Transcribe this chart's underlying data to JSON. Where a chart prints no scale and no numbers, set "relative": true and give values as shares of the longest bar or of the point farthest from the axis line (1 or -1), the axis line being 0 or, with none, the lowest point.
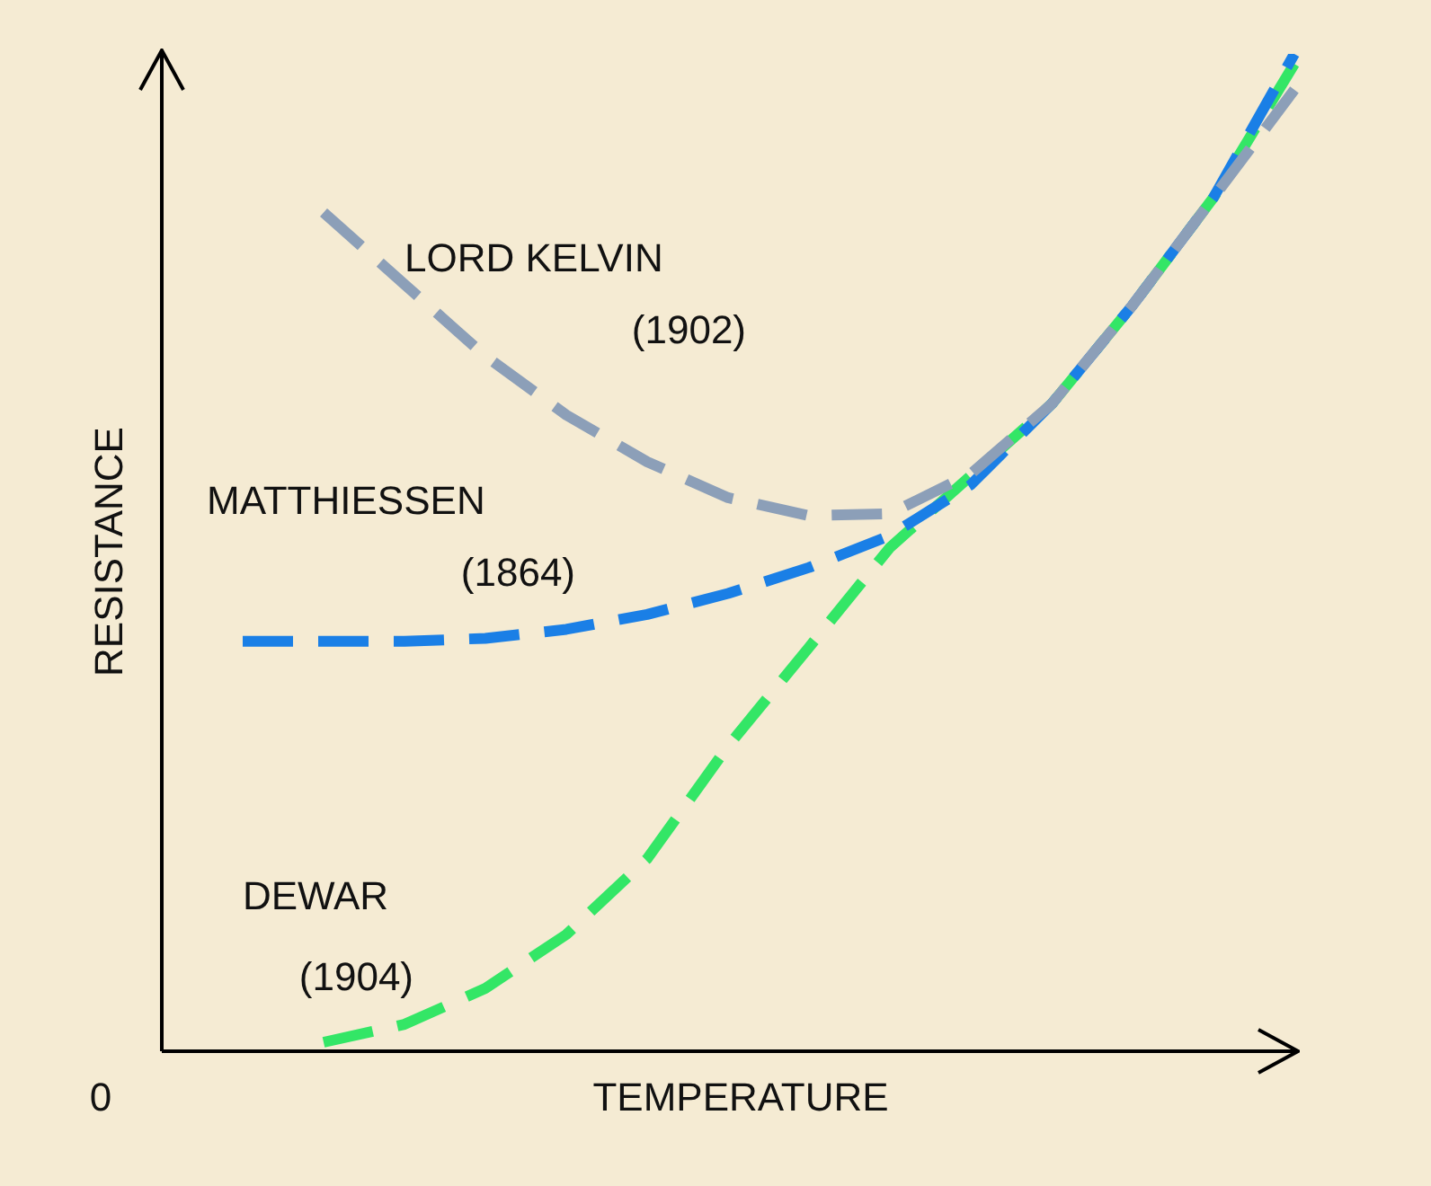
{
  "chart_data": {
    "type": "line",
    "relative": true,
    "xlabel": "TEMPERATURE",
    "ylabel": "RESISTANCE",
    "annotations": [
      "0"
    ],
    "categories": [
      null,
      null,
      null,
      null,
      null,
      null,
      null,
      null,
      null,
      null,
      null,
      null,
      null,
      null,
      null
    ],
    "series": [
      {
        "name": "LORD KELVIN (1902)",
        "color": "#8c9fb8",
        "values": [
          null,
          null,
          0.841,
          0.769,
          0.697,
          0.638,
          0.591,
          0.555,
          0.537,
          0.539,
          0.579,
          0.649,
          0.748,
          0.856,
          0.964
        ]
      },
      {
        "name": "MATTHIESSEN (1864)",
        "color": "#1a7fe6",
        "values": [
          null,
          0.411,
          0.411,
          0.411,
          0.414,
          0.423,
          0.438,
          0.459,
          0.485,
          0.517,
          0.568,
          0.649,
          0.748,
          0.856,
          1
        ]
      },
      {
        "name": "DEWAR (1904)",
        "color": "#33e666",
        "values": [
          null,
          null,
          0.009,
          0.027,
          0.063,
          0.117,
          0.193,
          0.306,
          0.405,
          0.505,
          0.577,
          0.649,
          0.748,
          0.856,
          0.99
        ]
      }
    ],
    "legend": false,
    "tick_labels": false,
    "marker": "none",
    "line_style": "dashed"
  }
}
